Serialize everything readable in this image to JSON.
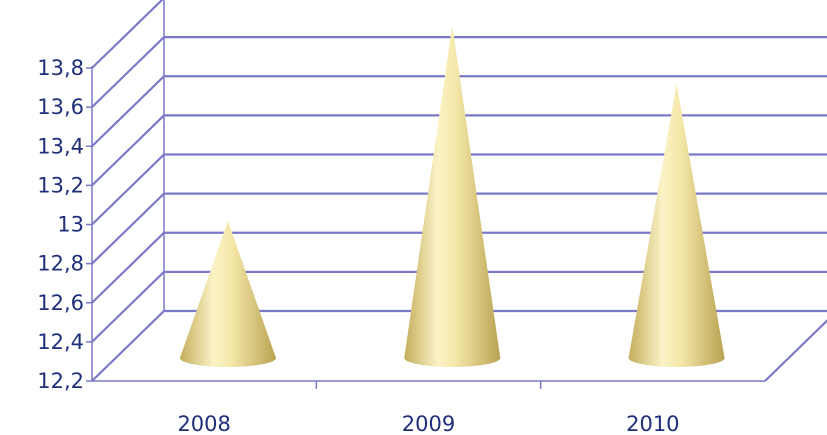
{
  "chart_data": {
    "type": "bar",
    "shape": "cone",
    "projection": "3d",
    "title": "",
    "xlabel": "",
    "ylabel": "",
    "categories": [
      "2008",
      "2009",
      "2010"
    ],
    "values": [
      12.9,
      13.9,
      13.6
    ],
    "ylim": [
      12.2,
      13.8
    ],
    "yticks": [
      "12,2",
      "12,4",
      "12,6",
      "12,8",
      "13",
      "13,2",
      "13,4",
      "13,6",
      "13,8"
    ],
    "grid": true,
    "legend": "none",
    "colors": {
      "gridline": "#7b79c7",
      "axis_text": "#1f2f7a",
      "cone_light": "#fdf7cf",
      "cone_mid": "#ecdc8e",
      "cone_dark": "#b9a352"
    }
  }
}
